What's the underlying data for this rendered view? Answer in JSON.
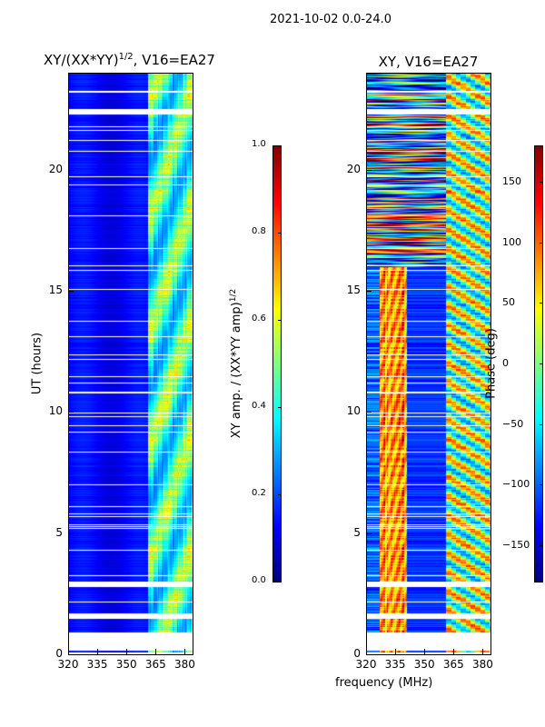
{
  "figure_title": "2021-10-02 0.0-24.0",
  "chart_data": [
    {
      "type": "heatmap",
      "title": "XY/(XX*YY)",
      "title_sup": "1/2",
      "title_suffix": ", V16=EA27",
      "xlabel": "",
      "ylabel": "UT (hours)",
      "xlim": [
        320,
        384
      ],
      "ylim": [
        0,
        24
      ],
      "xticks": [
        "320",
        "335",
        "350",
        "365",
        "380"
      ],
      "xtick_values": [
        320,
        335,
        350,
        365,
        380
      ],
      "yticks": [
        "0",
        "5",
        "10",
        "15",
        "20"
      ],
      "ytick_values": [
        0,
        5,
        10,
        15,
        20
      ],
      "colormap": "jet",
      "colorbar": {
        "label": "XY amp. / (XX*YY amp)",
        "label_sup": "1/2",
        "range": [
          0.0,
          1.0
        ],
        "ticks": [
          "0.0",
          "0.2",
          "0.4",
          "0.6",
          "0.8",
          "1.0"
        ],
        "tick_values": [
          0,
          0.2,
          0.4,
          0.6,
          0.8,
          1.0
        ]
      },
      "notes_values": {
        "background_level": 0.1,
        "rfi_band_mhz": [
          361,
          384
        ],
        "rfi_band_level": [
          0.2,
          0.6
        ]
      }
    },
    {
      "type": "heatmap",
      "title": "XY, V16=EA27",
      "xlabel": "frequency (MHz)",
      "ylabel": "",
      "xlim": [
        320,
        384
      ],
      "ylim": [
        0,
        24
      ],
      "xticks": [
        "320",
        "335",
        "350",
        "365",
        "380"
      ],
      "xtick_values": [
        320,
        335,
        350,
        365,
        380
      ],
      "yticks": [
        "0",
        "5",
        "10",
        "15",
        "20"
      ],
      "ytick_values": [
        0,
        5,
        10,
        15,
        20
      ],
      "colormap": "jet",
      "colorbar": {
        "label": "Phase (deg)",
        "range": [
          -180,
          180
        ],
        "ticks": [
          "−150",
          "−100",
          "−50",
          "0",
          "50",
          "100",
          "150"
        ],
        "tick_values": [
          -150,
          -100,
          -50,
          0,
          50,
          100,
          150
        ]
      },
      "notes_values": {
        "strong_band_mhz": [
          328,
          340
        ],
        "rfi_band_mhz": [
          361,
          384
        ]
      }
    }
  ]
}
